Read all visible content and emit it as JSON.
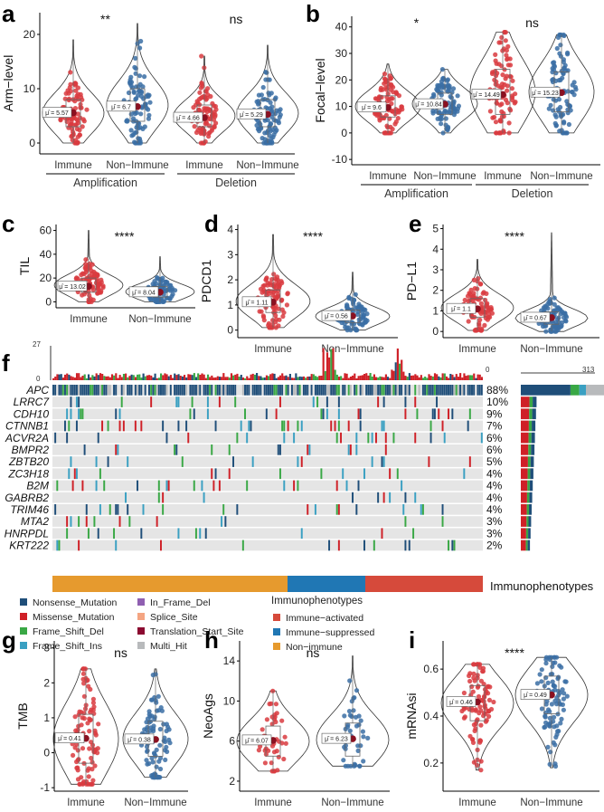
{
  "colors": {
    "immune": "#d93b3f",
    "non_immune": "#3b6ea5",
    "violin": "#333333",
    "box": "#888888",
    "nonsense": "#1f4e79",
    "missense": "#cf2027",
    "frame_del": "#39a845",
    "frame_ins": "#3aa0c2",
    "in_frame_del": "#8f5fb1",
    "splice": "#f4a582",
    "tss": "#8b0a30",
    "multi": "#b8babc",
    "activated": "#d64a3b",
    "suppressed": "#2077b4",
    "nonimm": "#e69a2e",
    "bg": "#e5e5e5"
  },
  "chart_data": [
    {
      "panel": "a",
      "type": "violin",
      "ylabel": "Arm−level",
      "ylim": [
        -2,
        24
      ],
      "yticks": [
        0,
        10,
        20
      ],
      "groups": [
        "Immune",
        "Non−Immune",
        "Immune",
        "Non−Immune"
      ],
      "group_labels": [
        "Amplification",
        "Deletion"
      ],
      "medians": [
        5.57,
        6.7,
        4.66,
        5.29
      ],
      "median_labels": [
        "5.57",
        "6.7",
        "4.66",
        "5.29"
      ],
      "significance": [
        "**",
        "ns"
      ]
    },
    {
      "panel": "b",
      "type": "violin",
      "ylabel": "Focal−level",
      "ylim": [
        -12,
        44
      ],
      "yticks": [
        -10,
        0,
        10,
        20,
        30,
        40
      ],
      "groups": [
        "Immune",
        "Non−Immune",
        "Immune",
        "Non−Immune"
      ],
      "group_labels": [
        "Amplification",
        "Deletion"
      ],
      "medians": [
        9.6,
        10.84,
        14.49,
        15.23
      ],
      "median_labels": [
        "9.6",
        "10.84",
        "14.49",
        "15.23"
      ],
      "significance": [
        "*",
        "ns"
      ]
    },
    {
      "panel": "c",
      "type": "violin",
      "ylabel": "TIL",
      "ylim": [
        -5,
        65
      ],
      "yticks": [
        0,
        20,
        40,
        60
      ],
      "groups": [
        "Immune",
        "Non−Immune"
      ],
      "medians": [
        13.02,
        8.04
      ],
      "median_labels": [
        "13.02",
        "8.04"
      ],
      "significance": "****"
    },
    {
      "panel": "d",
      "type": "violin",
      "ylabel": "PDCD1",
      "ylim": [
        -0.3,
        4.2
      ],
      "yticks": [
        0,
        1,
        2,
        3,
        4
      ],
      "groups": [
        "Immune",
        "Non−Immune"
      ],
      "medians": [
        1.11,
        0.56
      ],
      "median_labels": [
        "1.11",
        "0.56"
      ],
      "significance": "****"
    },
    {
      "panel": "e",
      "type": "violin",
      "ylabel": "PD−L1",
      "ylim": [
        -0.3,
        5.2
      ],
      "yticks": [
        0,
        1,
        2,
        3,
        4,
        5
      ],
      "groups": [
        "Immune",
        "Non−Immune"
      ],
      "medians": [
        1.1,
        0.67
      ],
      "median_labels": [
        "1.1",
        "0.67"
      ],
      "significance": "****"
    },
    {
      "panel": "f",
      "type": "oncoplot",
      "tmb_max": "27",
      "tmb_min": "0",
      "bar_min": "0",
      "bar_max": "313",
      "genes": [
        "APC",
        "LRRC7",
        "CDH10",
        "CTNNB1",
        "ACVR2A",
        "BMPR2",
        "ZBTB20",
        "ZC3H18",
        "B2M",
        "GABRB2",
        "TRIM46",
        "MTA2",
        "HNRPDL",
        "KRT222"
      ],
      "percents": [
        "88%",
        "10%",
        "9%",
        "7%",
        "6%",
        "6%",
        "5%",
        "4%",
        "4%",
        "4%",
        "4%",
        "3%",
        "3%",
        "2%"
      ],
      "annotation_label": "Immunophenotypes",
      "legend_title": "Immunophenotypes",
      "mutation_types": [
        "Nonsense_Mutation",
        "Missense_Mutation",
        "Frame_Shift_Del",
        "Frame_Shift_Ins",
        "In_Frame_Del",
        "Splice_Site",
        "Translation_Start_Site",
        "Multi_Hit"
      ],
      "phenotypes": [
        "Immune−activated",
        "Immune−suppressed",
        "Non−immune"
      ]
    },
    {
      "panel": "g",
      "type": "violin",
      "ylabel": "TMB",
      "ylim": [
        -1.1,
        3.2
      ],
      "yticks": [
        -1,
        0,
        1,
        2,
        3
      ],
      "groups": [
        "Immune",
        "Non−Immune"
      ],
      "medians": [
        0.41,
        0.38
      ],
      "median_labels": [
        "0.41",
        "0.38"
      ],
      "significance": "ns"
    },
    {
      "panel": "h",
      "type": "violin",
      "ylabel": "NeoAgs",
      "ylim": [
        1,
        16
      ],
      "yticks": [
        2,
        6,
        10,
        14
      ],
      "groups": [
        "Immune",
        "Non−Immune"
      ],
      "medians": [
        6.07,
        6.23
      ],
      "median_labels": [
        "6.07",
        "6.23"
      ],
      "significance": "ns"
    },
    {
      "panel": "i",
      "type": "violin",
      "ylabel": "mRNAsi",
      "ylim": [
        0.08,
        0.72
      ],
      "yticks": [
        0.2,
        0.4,
        0.6
      ],
      "groups": [
        "Immune",
        "Non−Immune"
      ],
      "medians": [
        0.46,
        0.49
      ],
      "median_labels": [
        "0.46",
        "0.49"
      ],
      "significance": "****"
    }
  ]
}
